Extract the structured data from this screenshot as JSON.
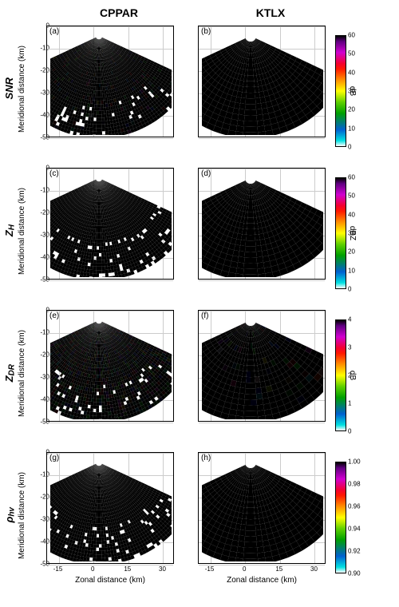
{
  "columns": [
    "CPPAR",
    "KTLX"
  ],
  "rows": [
    {
      "label": "SNR",
      "sub": "",
      "cb_min": 0,
      "cb_max": 60,
      "cb_step": 10,
      "cb_unit": "dB"
    },
    {
      "label": "Z",
      "sub": "H",
      "cb_min": 0,
      "cb_max": 60,
      "cb_step": 10,
      "cb_unit": "dBZ"
    },
    {
      "label": "Z",
      "sub": "DR",
      "cb_min": 0,
      "cb_max": 4,
      "cb_step": 1,
      "cb_unit": "dB"
    },
    {
      "label": "ρ",
      "sub": "hv",
      "cb_min": 0.9,
      "cb_max": 1.0,
      "cb_step": 0.02,
      "cb_unit": ""
    }
  ],
  "xlim": [
    -20,
    35
  ],
  "ylim": [
    -50,
    0
  ],
  "xticks": [
    -15,
    0,
    15,
    30
  ],
  "yticks": [
    0,
    -10,
    -20,
    -30,
    -40,
    -50
  ],
  "xlabel": "Zonal distance (km)",
  "ylabel": "Meridional distance (km)",
  "panel_labels": [
    "(a)",
    "(b)",
    "(c)",
    "(d)",
    "(e)",
    "(f)",
    "(g)",
    "(h)"
  ],
  "colormap": [
    {
      "v": 0.0,
      "c": "#ffffff"
    },
    {
      "v": 0.05,
      "c": "#00e0e0"
    },
    {
      "v": 0.15,
      "c": "#0060d0"
    },
    {
      "v": 0.3,
      "c": "#00a000"
    },
    {
      "v": 0.4,
      "c": "#60d000"
    },
    {
      "v": 0.5,
      "c": "#ffff00"
    },
    {
      "v": 0.6,
      "c": "#ff9000"
    },
    {
      "v": 0.72,
      "c": "#ff0000"
    },
    {
      "v": 0.85,
      "c": "#d000d0"
    },
    {
      "v": 0.95,
      "c": "#600080"
    },
    {
      "v": 1.0,
      "c": "#000000"
    }
  ],
  "sector_angle": [
    -65,
    65
  ],
  "grid_color": "#cccccc",
  "panel_data": {
    "a": {
      "dominant": "#40c020",
      "mix": [
        "#ffff00",
        "#0060d0",
        "#00c0c0"
      ],
      "holes": true
    },
    "b": {
      "dominant": "#d000d0",
      "mix": [
        "#ff0000",
        "#ff9000",
        "#000000"
      ],
      "holes": false
    },
    "c": {
      "dominant": "#ff6000",
      "mix": [
        "#ffff00",
        "#ff0000",
        "#40c020"
      ],
      "holes": true
    },
    "d": {
      "dominant": "#ff3000",
      "mix": [
        "#ff9000",
        "#ffff00",
        "#0060d0"
      ],
      "holes": false
    },
    "e": {
      "dominant": "#00c0c0",
      "mix": [
        "#0060d0",
        "#40c020",
        "#ff9000"
      ],
      "holes": true
    },
    "f": {
      "dominant": "#0060d0",
      "mix": [
        "#40c020",
        "#00c0c0",
        "#ff9000"
      ],
      "holes": false
    },
    "g": {
      "dominant": "#d00000",
      "mix": [
        "#ff6000",
        "#ffff00",
        "#600000"
      ],
      "holes": true
    },
    "h": {
      "dominant": "#ff3000",
      "mix": [
        "#ff9000",
        "#ffff00",
        "#40c020"
      ],
      "holes": false
    }
  }
}
